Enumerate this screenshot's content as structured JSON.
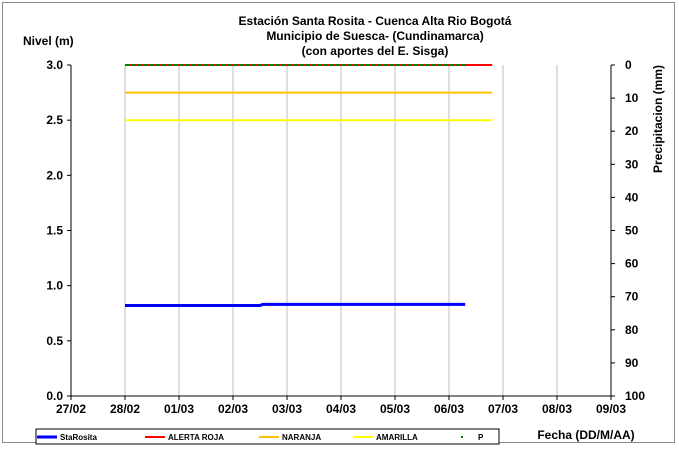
{
  "chart_data": {
    "type": "line",
    "title": "Estación Santa Rosita - Cuenca Alta Rio Bogotá",
    "subtitle": [
      "Municipio de Suesca- (Cundinamarca)",
      "(con aportes del  E. Sisga)"
    ],
    "ylabel": "Nivel (m)",
    "y2label": "Precipitacion (mm)",
    "xlabel": "Fecha (DD/M/AA)",
    "x_ticks": [
      "27/02",
      "28/02",
      "01/03",
      "02/03",
      "03/03",
      "04/03",
      "05/03",
      "06/03",
      "07/03",
      "08/03",
      "09/03"
    ],
    "y_ticks": [
      "0.0",
      "0.5",
      "1.0",
      "1.5",
      "2.0",
      "2.5",
      "3.0"
    ],
    "y2_ticks": [
      "0",
      "10",
      "20",
      "30",
      "40",
      "50",
      "60",
      "70",
      "80",
      "90",
      "100"
    ],
    "ylim": [
      0,
      3
    ],
    "y2lim": [
      100,
      0
    ],
    "y2_inverted": true,
    "grid": "vertical",
    "legend_position": "bottom",
    "series": [
      {
        "name": "StaRosita",
        "color": "#0000ff",
        "style": "line-thick",
        "axis": "left",
        "points": [
          [
            1.0,
            0.82
          ],
          [
            3.5,
            0.82
          ],
          [
            3.55,
            0.83
          ],
          [
            7.3,
            0.83
          ]
        ]
      },
      {
        "name": "ALERTA ROJA",
        "color": "#ff0000",
        "style": "line",
        "axis": "left",
        "points": [
          [
            1.0,
            3.0
          ],
          [
            7.8,
            3.0
          ]
        ]
      },
      {
        "name": "NARANJA",
        "color": "#ffc000",
        "style": "line",
        "axis": "left",
        "points": [
          [
            1.0,
            2.75
          ],
          [
            7.8,
            2.75
          ]
        ]
      },
      {
        "name": "AMARILLA",
        "color": "#ffff00",
        "style": "line",
        "axis": "left",
        "points": [
          [
            1.0,
            2.5
          ],
          [
            7.8,
            2.5
          ]
        ]
      },
      {
        "name": "P",
        "color": "#008000",
        "style": "dots",
        "axis": "right",
        "points": [
          [
            1.0,
            0
          ],
          [
            7.3,
            0
          ]
        ]
      }
    ]
  }
}
